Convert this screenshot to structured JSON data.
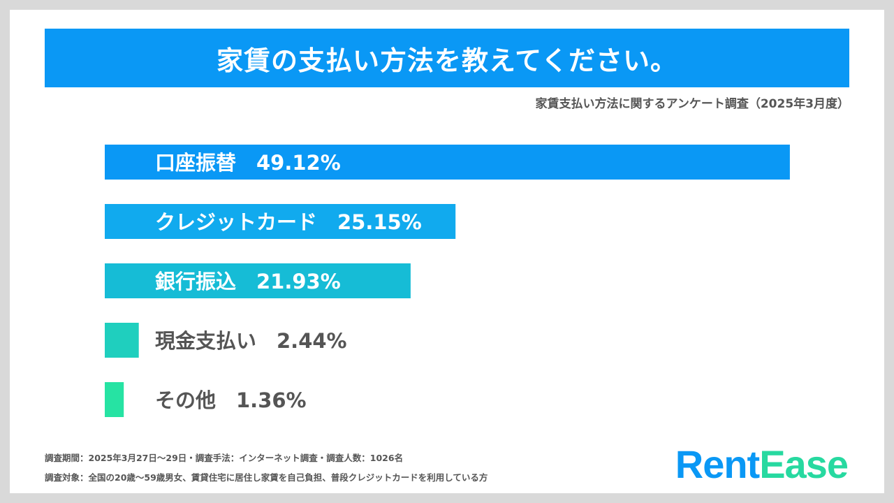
{
  "title": "家賃の支払い方法を教えてください。",
  "subtitle": "家賃支払い方法に関するアンケート調査（2025年3月度）",
  "chart_data": {
    "type": "bar",
    "orientation": "horizontal",
    "categories": [
      "口座振替",
      "クレジットカード",
      "銀行振込",
      "現金支払い",
      "その他"
    ],
    "values": [
      49.12,
      25.15,
      21.93,
      2.44,
      1.36
    ],
    "value_labels": [
      "49.12%",
      "25.15%",
      "21.93%",
      "2.44%",
      "1.36%"
    ],
    "colors": [
      "#0a98f5",
      "#11aaee",
      "#16bcd6",
      "#1fcfbe",
      "#26e3a3"
    ],
    "xlim": [
      0,
      100
    ],
    "grid": false,
    "legend": "none"
  },
  "footer": {
    "period": "調査期間：2025年3月27日〜29日・調査手法：インターネット調査・調査人数：1026名",
    "target": "調査対象：全国の20歳〜59歳男女、賃貸住宅に居住し家賃を自己負担、普段クレジットカードを利用している方"
  },
  "logo": {
    "part1": "Rent",
    "part2": "Ease"
  }
}
